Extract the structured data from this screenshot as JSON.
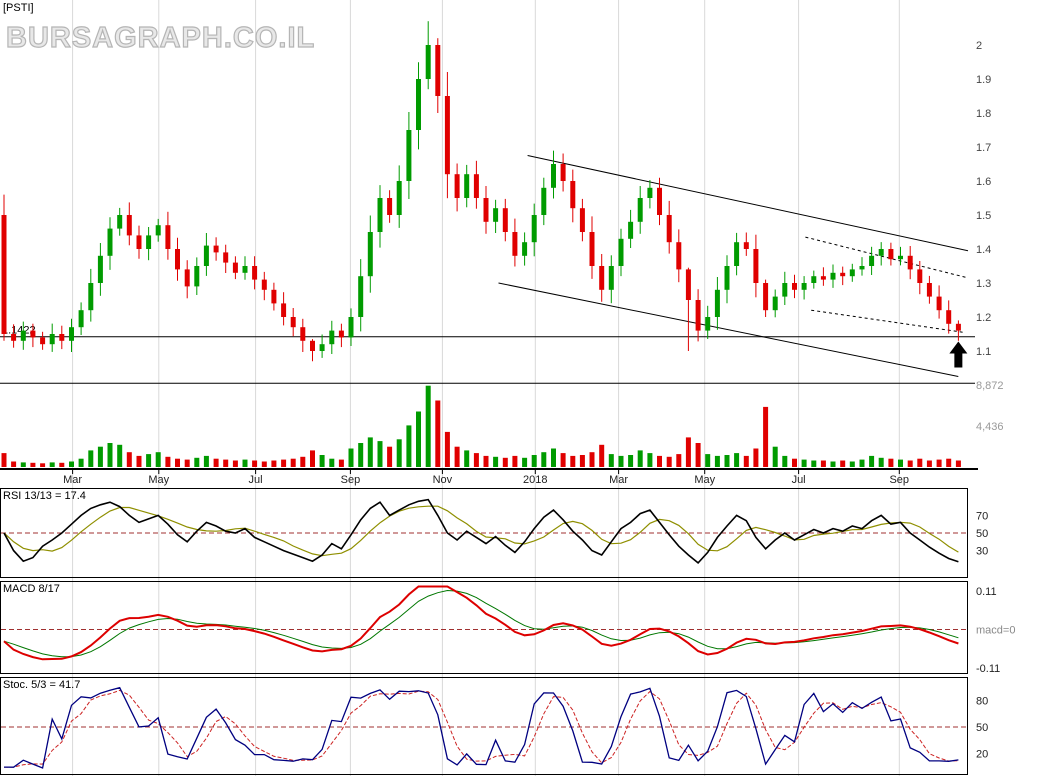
{
  "ticker": "[PSTI]",
  "watermark": "BURSAGRAPH.CO.IL",
  "panels": {
    "rsi_label": "RSI 13/13 = 17.4",
    "macd_label": "MACD 8/17",
    "stoch_label": "Stoc. 5/3 = 41.7"
  },
  "colors": {
    "up": "#009b00",
    "down": "#e00000",
    "grid": "#d9d9d9",
    "ref": "#a03030",
    "rsi_line": "#000000",
    "rsi_signal": "#8f8f00",
    "macd_line": "#dd0000",
    "macd_signal": "#007700",
    "stoch_k": "#000080",
    "stoch_d": "#cc2222",
    "axis_text": "#444444",
    "vol_text": "#999999"
  },
  "chart_data": [
    {
      "type": "candlestick",
      "panel": "price",
      "ylim": [
        0.95,
        2.13
      ],
      "y_ticks": [
        2,
        1.9,
        1.8,
        1.7,
        1.6,
        1.5,
        1.4,
        1.3,
        1.2,
        1.1
      ],
      "x_ticks": [
        {
          "f": 0.075,
          "label": "Mar"
        },
        {
          "f": 0.164,
          "label": "May"
        },
        {
          "f": 0.264,
          "label": "Jul"
        },
        {
          "f": 0.362,
          "label": "Sep"
        },
        {
          "f": 0.457,
          "label": "Nov"
        },
        {
          "f": 0.553,
          "label": "2018"
        },
        {
          "f": 0.639,
          "label": "Mar"
        },
        {
          "f": 0.728,
          "label": "May"
        },
        {
          "f": 0.825,
          "label": "Jul"
        },
        {
          "f": 0.929,
          "label": "Sep"
        }
      ],
      "first_open": 1.5,
      "closes": [
        1.15,
        1.13,
        1.16,
        1.14,
        1.12,
        1.15,
        1.13,
        1.17,
        1.22,
        1.3,
        1.38,
        1.46,
        1.5,
        1.44,
        1.4,
        1.44,
        1.47,
        1.4,
        1.34,
        1.29,
        1.35,
        1.41,
        1.39,
        1.36,
        1.33,
        1.35,
        1.31,
        1.28,
        1.24,
        1.2,
        1.17,
        1.13,
        1.1,
        1.12,
        1.16,
        1.14,
        1.2,
        1.32,
        1.45,
        1.55,
        1.5,
        1.6,
        1.75,
        1.9,
        2.0,
        1.85,
        1.62,
        1.55,
        1.62,
        1.55,
        1.48,
        1.52,
        1.45,
        1.38,
        1.42,
        1.5,
        1.58,
        1.65,
        1.6,
        1.52,
        1.45,
        1.35,
        1.28,
        1.35,
        1.43,
        1.48,
        1.55,
        1.58,
        1.5,
        1.42,
        1.34,
        1.25,
        1.16,
        1.2,
        1.28,
        1.35,
        1.42,
        1.4,
        1.3,
        1.22,
        1.26,
        1.3,
        1.28,
        1.3,
        1.32,
        1.31,
        1.33,
        1.32,
        1.34,
        1.35,
        1.38,
        1.4,
        1.37,
        1.38,
        1.34,
        1.3,
        1.26,
        1.22,
        1.18,
        1.16
      ],
      "wick_overrides": {
        "0": [
          1.56,
          1.13
        ],
        "32": [
          1.135,
          1.07
        ],
        "44": [
          2.07,
          1.87
        ],
        "45": [
          2.02,
          1.8
        ],
        "71": [
          1.345,
          1.1
        ],
        "79": [
          1.31,
          1.2
        ],
        "99": [
          1.19,
          1.13
        ]
      },
      "support_lines": [
        {
          "price": 1.1422,
          "label": "1.1422"
        },
        {
          "price": 1.005,
          "label": ""
        }
      ],
      "trendlines": [
        {
          "style": "solid",
          "points": [
            [
              0.545,
              1.675
            ],
            [
              1.0,
              1.395
            ]
          ]
        },
        {
          "style": "solid",
          "points": [
            [
              0.515,
              1.3
            ],
            [
              0.99,
              1.025
            ]
          ]
        },
        {
          "style": "dotted",
          "points": [
            [
              0.832,
              1.435
            ],
            [
              1.0,
              1.315
            ]
          ]
        },
        {
          "style": "dotted",
          "points": [
            [
              0.838,
              1.22
            ],
            [
              0.995,
              1.155
            ]
          ]
        }
      ],
      "arrow": {
        "x_index": 99,
        "price": 1.128
      }
    },
    {
      "type": "bar",
      "panel": "volume",
      "max": 8872,
      "y_ticks": [
        {
          "v": 8872,
          "label": "8,872"
        },
        {
          "v": 4436,
          "label": "4,436"
        }
      ],
      "values": [
        1500,
        600,
        500,
        450,
        400,
        500,
        450,
        600,
        900,
        1800,
        2200,
        2600,
        2400,
        1600,
        1200,
        1400,
        1600,
        1100,
        900,
        800,
        1000,
        1200,
        900,
        800,
        700,
        800,
        700,
        600,
        700,
        800,
        900,
        1100,
        1800,
        1300,
        900,
        800,
        2000,
        2600,
        3200,
        2800,
        2200,
        3000,
        4500,
        6000,
        8800,
        7200,
        3800,
        2200,
        1800,
        1500,
        1200,
        1100,
        1000,
        1200,
        1000,
        1300,
        1600,
        2000,
        1500,
        1200,
        1300,
        1600,
        2400,
        1400,
        1200,
        1300,
        1800,
        1500,
        1200,
        1100,
        1400,
        3200,
        2600,
        1400,
        1200,
        1300,
        1500,
        1200,
        2000,
        6500,
        2200,
        1200,
        900,
        800,
        700,
        700,
        600,
        700,
        600,
        800,
        1200,
        1000,
        900,
        800,
        700,
        900,
        700,
        800,
        900,
        700
      ]
    },
    {
      "type": "line",
      "panel": "rsi",
      "label": "RSI 13/13 = 17.4",
      "ylim": [
        0,
        100
      ],
      "y_ticks": [
        70,
        50,
        30
      ],
      "ref_lines": [
        50
      ],
      "values": [
        50,
        30,
        18,
        22,
        35,
        42,
        50,
        60,
        70,
        78,
        82,
        85,
        80,
        70,
        62,
        66,
        70,
        60,
        48,
        40,
        52,
        62,
        58,
        52,
        50,
        55,
        45,
        40,
        35,
        30,
        26,
        22,
        18,
        25,
        38,
        32,
        48,
        65,
        78,
        85,
        70,
        76,
        82,
        86,
        88,
        70,
        50,
        42,
        52,
        45,
        38,
        46,
        36,
        28,
        40,
        55,
        68,
        76,
        65,
        52,
        42,
        30,
        25,
        40,
        55,
        62,
        72,
        76,
        62,
        48,
        35,
        25,
        16,
        28,
        45,
        58,
        70,
        64,
        45,
        32,
        42,
        50,
        42,
        48,
        54,
        50,
        55,
        52,
        58,
        55,
        64,
        70,
        60,
        62,
        50,
        42,
        34,
        27,
        21,
        17.4
      ]
    },
    {
      "type": "line",
      "panel": "macd",
      "label": "MACD 8/17",
      "fast": 8,
      "slow": 17,
      "ylim": [
        -0.13,
        0.13
      ],
      "ref_lines": [
        0
      ],
      "y_ticks": [
        {
          "v": 0.11,
          "label": "0.11"
        },
        {
          "v": 0,
          "label": "macd=0"
        },
        {
          "v": -0.11,
          "label": "-0.11"
        }
      ]
    },
    {
      "type": "line",
      "panel": "stoch",
      "label": "Stoc. 5/3 = 41.7",
      "k": 5,
      "d": 3,
      "ylim": [
        0,
        100
      ],
      "ref_lines": [
        50
      ],
      "y_ticks": [
        80,
        50,
        20
      ]
    }
  ]
}
